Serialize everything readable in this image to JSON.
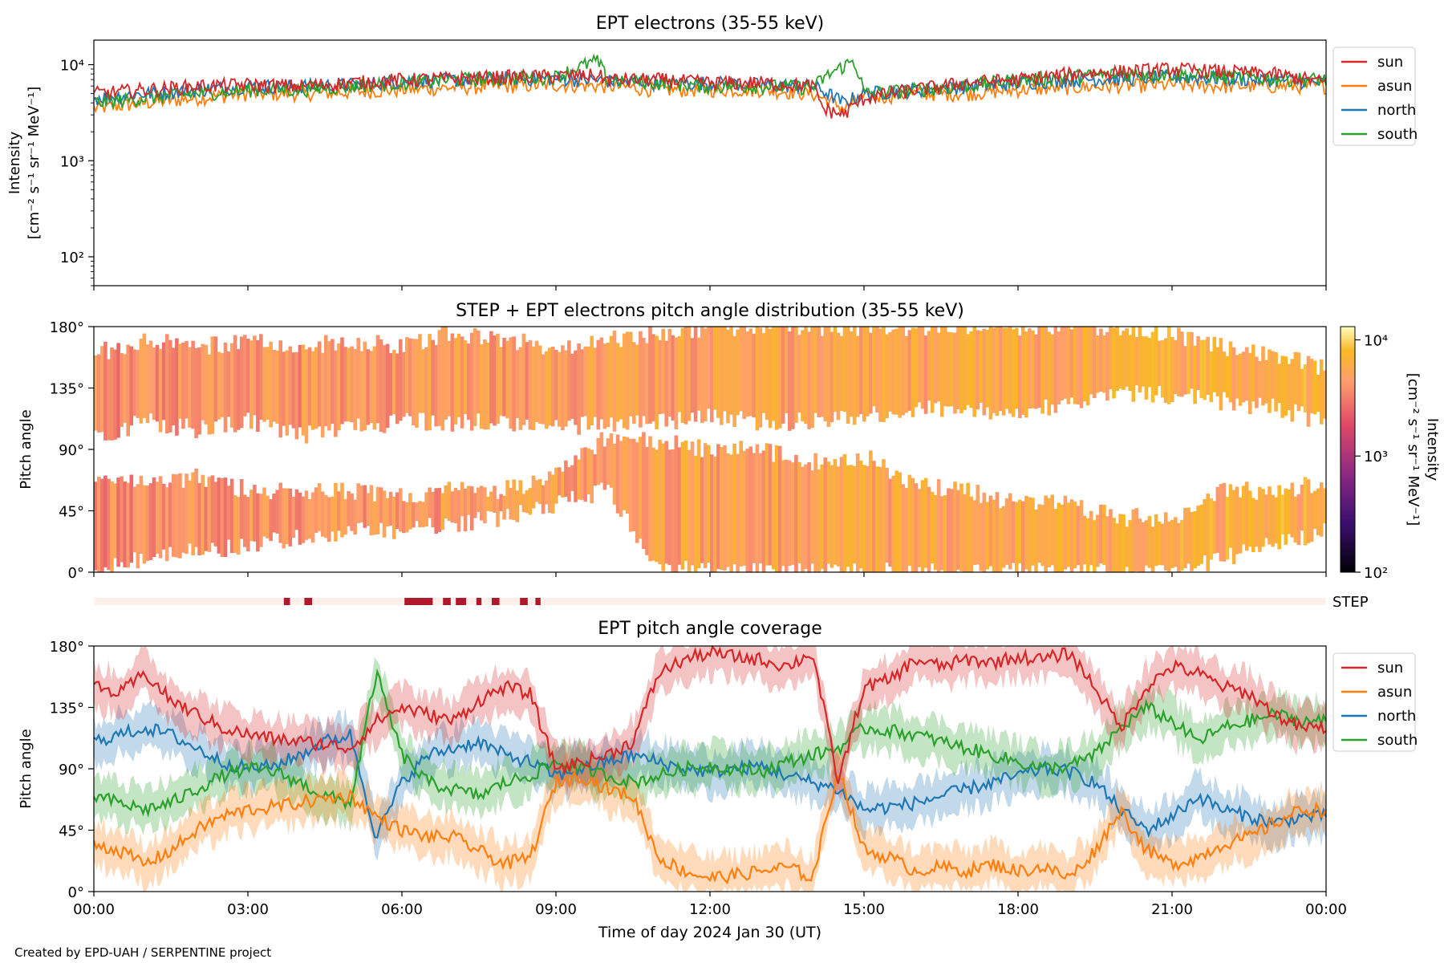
{
  "footer": "Created by EPD-UAH / SERPENTINE project",
  "colors": {
    "sun": "#d62728",
    "asun": "#ff7f0e",
    "north": "#1f77b4",
    "south": "#2ca02c"
  },
  "chart_data": [
    {
      "type": "line",
      "title": "EPT electrons (35-55 keV)",
      "ylabel_line1": "Intensity",
      "ylabel_line2": "[cm⁻² s⁻¹ sr⁻¹ MeV⁻¹]",
      "yscale": "log",
      "ylim": [
        50,
        18000
      ],
      "yticks": [
        "10²",
        "10³",
        "10⁴"
      ],
      "ytick_values": [
        100,
        1000,
        10000
      ],
      "x_range_hours": [
        0,
        24
      ],
      "legend": [
        "sun",
        "asun",
        "north",
        "south"
      ],
      "legend_position": "outside-right",
      "series": [
        {
          "name": "sun",
          "x_hours": [
            0,
            1,
            2,
            3,
            4,
            5,
            6,
            7,
            8,
            9,
            9.8,
            10,
            11,
            12,
            13,
            14,
            14.2,
            14.6,
            15,
            16,
            17,
            18,
            19,
            20,
            21,
            22,
            23,
            24
          ],
          "values": [
            5000,
            5500,
            6000,
            6200,
            6000,
            6500,
            7000,
            7200,
            7500,
            7600,
            7800,
            7000,
            7000,
            6500,
            6500,
            6000,
            3500,
            3000,
            4500,
            5500,
            6500,
            7000,
            8000,
            8500,
            9000,
            8500,
            8000,
            6500
          ]
        },
        {
          "name": "asun",
          "x_hours": [
            0,
            1,
            2,
            3,
            4,
            5,
            6,
            7,
            8,
            9,
            10,
            11,
            12,
            13,
            14,
            14.6,
            15,
            16,
            17,
            18,
            19,
            20,
            21,
            22,
            23,
            24
          ],
          "values": [
            3500,
            4000,
            4500,
            5000,
            5000,
            5200,
            5500,
            5800,
            6000,
            6200,
            6000,
            5500,
            5500,
            5500,
            5000,
            3500,
            4500,
            5000,
            5000,
            5500,
            5800,
            6000,
            6200,
            6000,
            6000,
            6000
          ]
        },
        {
          "name": "north",
          "x_hours": [
            0,
            1,
            2,
            3,
            4,
            5,
            6,
            7,
            8,
            9,
            10,
            11,
            12,
            13,
            14,
            14.6,
            15,
            16,
            17,
            18,
            19,
            20,
            21,
            22,
            23,
            24
          ],
          "values": [
            4500,
            5000,
            5500,
            6000,
            6000,
            6200,
            6800,
            7000,
            7200,
            7200,
            6800,
            6500,
            6500,
            6200,
            6000,
            4000,
            5000,
            5500,
            6000,
            6500,
            7000,
            7200,
            7500,
            7200,
            7000,
            6500
          ]
        },
        {
          "name": "south",
          "x_hours": [
            0,
            1,
            2,
            3,
            4,
            5,
            6,
            7,
            8,
            9,
            9.8,
            10,
            11,
            12,
            13,
            14,
            14.8,
            15,
            16,
            17,
            18,
            19,
            20,
            21,
            22,
            23,
            24
          ],
          "values": [
            4000,
            4500,
            5000,
            5500,
            5500,
            6000,
            6500,
            7000,
            7200,
            7500,
            11000,
            7000,
            6500,
            6000,
            6000,
            5800,
            11000,
            5000,
            5500,
            6000,
            7000,
            7500,
            8000,
            8000,
            7500,
            7200,
            7000
          ]
        }
      ]
    },
    {
      "type": "heatmap",
      "title": "STEP + EPT electrons pitch angle distribution (35-55 keV)",
      "ylabel": "Pitch angle",
      "ylim": [
        0,
        180
      ],
      "yticks": [
        "0°",
        "45°",
        "90°",
        "135°",
        "180°"
      ],
      "colorbar_label_line1": "Intensity",
      "colorbar_label_line2": "[cm⁻² s⁻¹ sr⁻¹ MeV⁻¹]",
      "colorbar_scale": "log",
      "colorbar_range": [
        100,
        13000
      ],
      "colorbar_ticks": [
        "10²",
        "10³",
        "10⁴"
      ],
      "colorbar_tick_values": [
        100,
        1000,
        10000
      ],
      "bands": [
        {
          "x_hours": [
            0,
            1,
            2,
            3,
            4,
            5,
            6,
            7,
            8,
            9,
            10,
            11,
            12,
            13,
            14,
            15,
            16,
            17,
            18,
            19,
            20,
            21,
            22,
            23,
            24
          ],
          "lo": [
            0,
            10,
            15,
            20,
            25,
            30,
            30,
            35,
            40,
            50,
            60,
            5,
            0,
            0,
            0,
            0,
            0,
            0,
            0,
            0,
            0,
            0,
            10,
            20,
            30
          ],
          "hi": [
            70,
            65,
            70,
            60,
            60,
            60,
            55,
            60,
            60,
            70,
            100,
            95,
            90,
            90,
            80,
            85,
            65,
            60,
            50,
            50,
            40,
            40,
            60,
            60,
            65
          ]
        },
        {
          "x_hours": [
            0,
            1,
            2,
            3,
            4,
            5,
            6,
            7,
            8,
            9,
            10,
            11,
            12,
            13,
            14,
            15,
            16,
            17,
            18,
            19,
            20,
            21,
            22,
            23,
            24
          ],
          "lo": [
            100,
            110,
            105,
            110,
            100,
            105,
            110,
            110,
            110,
            105,
            110,
            110,
            115,
            110,
            110,
            115,
            120,
            120,
            115,
            125,
            130,
            130,
            125,
            120,
            110
          ],
          "hi": [
            160,
            170,
            165,
            170,
            165,
            170,
            165,
            175,
            170,
            165,
            170,
            175,
            180,
            180,
            180,
            180,
            180,
            180,
            180,
            180,
            180,
            175,
            165,
            160,
            150
          ]
        }
      ],
      "band_intensity": [
        3500,
        6000
      ]
    },
    {
      "type": "bar",
      "label": "STEP",
      "x_range_hours": [
        0,
        24
      ],
      "active_intervals_hours": [
        [
          3.7,
          3.82
        ],
        [
          4.1,
          4.25
        ],
        [
          6.05,
          6.6
        ],
        [
          6.8,
          6.95
        ],
        [
          7.05,
          7.25
        ],
        [
          7.45,
          7.55
        ],
        [
          7.75,
          7.9
        ],
        [
          8.3,
          8.45
        ],
        [
          8.6,
          8.7
        ]
      ],
      "colors": {
        "active": "#b2182b",
        "inactive": "#fdf0eb"
      }
    },
    {
      "type": "area",
      "title": "EPT pitch angle coverage",
      "ylabel": "Pitch angle",
      "xlabel": "Time of day 2024 Jan 30 (UT)",
      "ylim": [
        0,
        180
      ],
      "yticks": [
        "0°",
        "45°",
        "90°",
        "135°",
        "180°"
      ],
      "xticks": [
        "00:00",
        "03:00",
        "06:00",
        "09:00",
        "12:00",
        "15:00",
        "18:00",
        "21:00",
        "00:00"
      ],
      "xtick_hours": [
        0,
        3,
        6,
        9,
        12,
        15,
        18,
        21,
        24
      ],
      "legend": [
        "sun",
        "asun",
        "north",
        "south"
      ],
      "legend_position": "outside-right",
      "band_halfwidth_deg": 15,
      "series": [
        {
          "name": "sun",
          "x_hours": [
            0,
            0.5,
            1,
            1.5,
            2,
            2.5,
            3,
            3.5,
            4,
            4.5,
            5,
            5.5,
            6,
            6.5,
            7,
            7.5,
            8,
            8.5,
            9,
            9.5,
            10,
            10.5,
            11,
            11.5,
            12,
            12.5,
            13,
            13.5,
            14,
            14.5,
            15,
            15.5,
            16,
            16.5,
            17,
            17.5,
            18,
            18.5,
            19,
            19.5,
            20,
            20.5,
            21,
            21.5,
            22,
            22.5,
            23,
            23.5,
            24
          ],
          "values": [
            150,
            145,
            160,
            140,
            130,
            120,
            115,
            112,
            110,
            108,
            105,
            125,
            135,
            130,
            125,
            140,
            150,
            145,
            90,
            95,
            100,
            110,
            160,
            170,
            175,
            172,
            170,
            165,
            175,
            80,
            150,
            155,
            170,
            165,
            170,
            168,
            172,
            170,
            175,
            150,
            120,
            150,
            165,
            160,
            150,
            145,
            130,
            120,
            120
          ]
        },
        {
          "name": "asun",
          "x_hours": [
            0,
            0.5,
            1,
            1.5,
            2,
            2.5,
            3,
            3.5,
            4,
            4.5,
            5,
            5.5,
            6,
            6.5,
            7,
            7.5,
            8,
            8.5,
            9,
            9.5,
            10,
            10.5,
            11,
            11.5,
            12,
            12.5,
            13,
            13.5,
            14,
            14.5,
            15,
            15.5,
            16,
            16.5,
            17,
            17.5,
            18,
            18.5,
            19,
            19.5,
            20,
            20.5,
            21,
            21.5,
            22,
            22.5,
            23,
            23.5,
            24
          ],
          "values": [
            35,
            30,
            20,
            30,
            45,
            55,
            60,
            62,
            65,
            68,
            70,
            55,
            45,
            40,
            40,
            30,
            20,
            25,
            80,
            85,
            75,
            70,
            25,
            15,
            10,
            12,
            15,
            18,
            10,
            90,
            30,
            25,
            15,
            18,
            15,
            20,
            15,
            18,
            10,
            30,
            60,
            30,
            20,
            25,
            35,
            40,
            50,
            60,
            60
          ]
        },
        {
          "name": "north",
          "x_hours": [
            0,
            0.5,
            1,
            1.5,
            2,
            2.5,
            3,
            3.5,
            4,
            4.5,
            5,
            5.5,
            6,
            6.5,
            7,
            7.5,
            8,
            8.5,
            9,
            9.5,
            10,
            10.5,
            11,
            11.5,
            12,
            12.5,
            13,
            13.5,
            14,
            14.5,
            15,
            15.5,
            16,
            16.5,
            17,
            17.5,
            18,
            18.5,
            19,
            19.5,
            20,
            20.5,
            21,
            21.5,
            22,
            22.5,
            23,
            23.5,
            24
          ],
          "values": [
            110,
            115,
            120,
            115,
            105,
            95,
            90,
            92,
            100,
            110,
            115,
            40,
            80,
            100,
            105,
            110,
            100,
            95,
            85,
            90,
            95,
            100,
            95,
            90,
            88,
            90,
            92,
            85,
            80,
            75,
            60,
            62,
            65,
            70,
            75,
            80,
            85,
            90,
            88,
            80,
            60,
            45,
            55,
            70,
            60,
            55,
            50,
            55,
            55
          ]
        },
        {
          "name": "south",
          "x_hours": [
            0,
            0.5,
            1,
            1.5,
            2,
            2.5,
            3,
            3.5,
            4,
            4.5,
            5,
            5.5,
            6,
            6.5,
            7,
            7.5,
            8,
            8.5,
            9,
            9.5,
            10,
            10.5,
            11,
            11.5,
            12,
            12.5,
            13,
            13.5,
            14,
            14.5,
            15,
            15.5,
            16,
            16.5,
            17,
            17.5,
            18,
            18.5,
            19,
            19.5,
            20,
            20.5,
            21,
            21.5,
            22,
            22.5,
            23,
            23.5,
            24
          ],
          "values": [
            70,
            65,
            60,
            65,
            75,
            85,
            90,
            88,
            80,
            70,
            65,
            160,
            100,
            80,
            75,
            70,
            80,
            85,
            95,
            90,
            85,
            80,
            85,
            90,
            92,
            90,
            88,
            95,
            100,
            105,
            120,
            118,
            115,
            110,
            105,
            100,
            95,
            90,
            92,
            100,
            120,
            135,
            125,
            110,
            120,
            125,
            130,
            125,
            125
          ]
        }
      ]
    }
  ]
}
